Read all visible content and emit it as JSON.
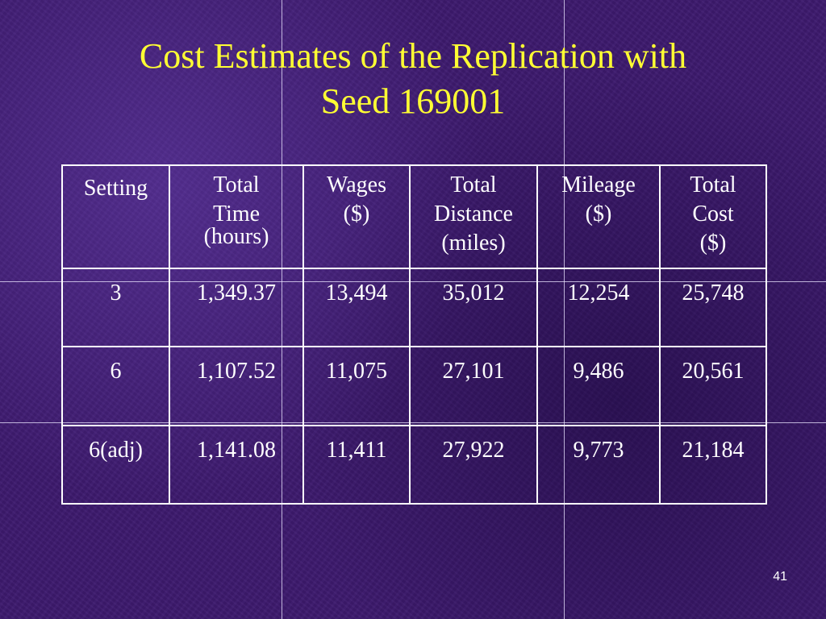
{
  "title": {
    "line1": "Cost Estimates of the Replication with",
    "line2": "Seed 169001"
  },
  "table": {
    "headers": [
      {
        "lines": [
          "Setting"
        ]
      },
      {
        "lines": [
          "Total",
          "Time",
          "(hours)"
        ]
      },
      {
        "lines": [
          "Wages",
          "($)"
        ]
      },
      {
        "lines": [
          "Total",
          "Distance",
          "(miles)"
        ]
      },
      {
        "lines": [
          "Mileage",
          "($)"
        ]
      },
      {
        "lines": [
          "Total",
          "Cost",
          "($)"
        ]
      }
    ],
    "rows": [
      [
        "3",
        "1,349.37",
        "13,494",
        "35,012",
        "12,254",
        "25,748"
      ],
      [
        "6",
        "1,107.52",
        "11,075",
        "27,101",
        "9,486",
        "20,561"
      ],
      [
        "6(adj)",
        "1,141.08",
        "11,411",
        "27,922",
        "9,773",
        "21,184"
      ]
    ]
  },
  "slide_number": "41",
  "colors": {
    "background": "#3d1a6e",
    "title": "#ffff33",
    "text": "#ffffff"
  }
}
